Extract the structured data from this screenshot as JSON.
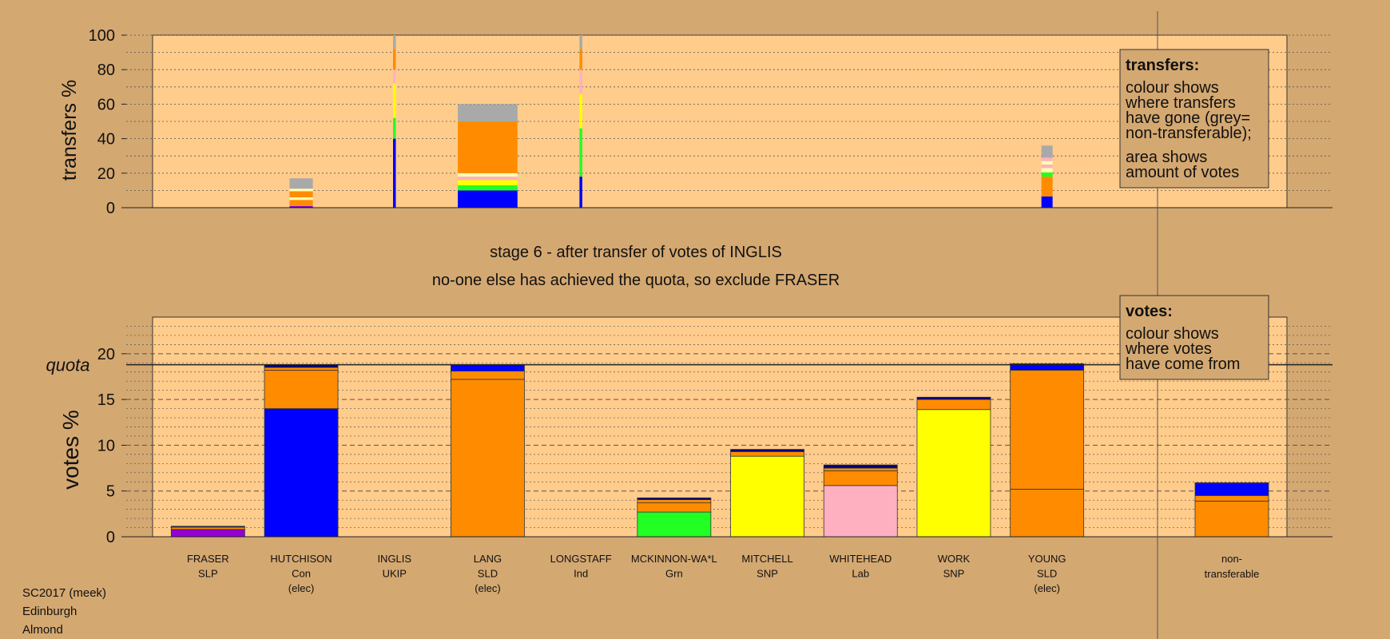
{
  "colors": {
    "background": "#d4a871",
    "plot_bg": "#ffcc8c",
    "grey": "#a9a9a9",
    "orange": "#ff8c00",
    "blue": "#0000ff",
    "yellow": "#ffff00",
    "green": "#22ff22",
    "pink": "#ffb0c0",
    "purple": "#9400d3",
    "navy": "#000080",
    "light_yellow": "#ffffb0"
  },
  "title_lines": {
    "stage": "stage 6 - after transfer of votes of INGLIS",
    "action": "no-one else has achieved the quota, so exclude FRASER"
  },
  "footer": {
    "line1": "SC2017 (meek)",
    "line2": "Edinburgh",
    "line3": "Almond"
  },
  "legend_transfers": {
    "heading": "transfers:",
    "line1": "colour shows",
    "line2": "where transfers",
    "line3": "have gone (grey=",
    "line4": "non-transferable);",
    "line5": "area shows",
    "line6": "amount of votes"
  },
  "legend_votes": {
    "heading": "votes:",
    "line1": "colour shows",
    "line2": "where votes",
    "line3": "have come from"
  },
  "chart_data": {
    "candidates": [
      {
        "name": "FRASER",
        "party": "SLP",
        "status": ""
      },
      {
        "name": "HUTCHISON",
        "party": "Con",
        "status": "(elec)"
      },
      {
        "name": "INGLIS",
        "party": "UKIP",
        "status": ""
      },
      {
        "name": "LANG",
        "party": "SLD",
        "status": "(elec)"
      },
      {
        "name": "LONGSTAFF",
        "party": "Ind",
        "status": ""
      },
      {
        "name": "MCKINNON-WA*L",
        "party": "Grn",
        "status": ""
      },
      {
        "name": "MITCHELL",
        "party": "SNP",
        "status": ""
      },
      {
        "name": "WHITEHEAD",
        "party": "Lab",
        "status": ""
      },
      {
        "name": "WORK",
        "party": "SNP",
        "status": ""
      },
      {
        "name": "YOUNG",
        "party": "SLD",
        "status": "(elec)"
      }
    ],
    "nontransferable": {
      "line1": "non-",
      "line2": "transferable"
    },
    "transfers": {
      "type": "bar",
      "ylabel": "transfers %",
      "ylim": [
        0,
        100
      ],
      "yticks": [
        "0",
        "20",
        "40",
        "60",
        "80",
        "100"
      ],
      "bars": [
        {
          "candidate": "HUTCHISON",
          "width": 0.25,
          "segments": [
            {
              "color": "blue",
              "value": 0.5
            },
            {
              "color": "purple",
              "value": 0.5
            },
            {
              "color": "orange",
              "value": 3.5
            },
            {
              "color": "light_yellow",
              "value": 1.5
            },
            {
              "color": "orange",
              "value": 3.5
            },
            {
              "color": "light_yellow",
              "value": 1.5
            },
            {
              "color": "grey",
              "value": 6
            }
          ]
        },
        {
          "candidate": "INGLIS",
          "width": 0.03,
          "segments": [
            {
              "color": "blue",
              "value": 40
            },
            {
              "color": "green",
              "value": 12
            },
            {
              "color": "yellow",
              "value": 20
            },
            {
              "color": "pink",
              "value": 8
            },
            {
              "color": "orange",
              "value": 12
            },
            {
              "color": "grey",
              "value": 8
            }
          ]
        },
        {
          "candidate": "LANG",
          "width": 0.64,
          "segments": [
            {
              "color": "blue",
              "value": 10
            },
            {
              "color": "green",
              "value": 3
            },
            {
              "color": "yellow",
              "value": 3
            },
            {
              "color": "pink",
              "value": 2
            },
            {
              "color": "light_yellow",
              "value": 2
            },
            {
              "color": "orange",
              "value": 30
            },
            {
              "color": "grey",
              "value": 10
            }
          ]
        },
        {
          "candidate": "LONGSTAFF",
          "width": 0.03,
          "segments": [
            {
              "color": "blue",
              "value": 18
            },
            {
              "color": "green",
              "value": 28
            },
            {
              "color": "yellow",
              "value": 20
            },
            {
              "color": "pink",
              "value": 14
            },
            {
              "color": "orange",
              "value": 12
            },
            {
              "color": "grey",
              "value": 8
            }
          ]
        },
        {
          "candidate": "YOUNG",
          "width": 0.12,
          "segments": [
            {
              "color": "blue",
              "value": 6.5
            },
            {
              "color": "orange",
              "value": 11.5
            },
            {
              "color": "green",
              "value": 2.5
            },
            {
              "color": "light_yellow",
              "value": 2.5
            },
            {
              "color": "pink",
              "value": 2
            },
            {
              "color": "light_yellow",
              "value": 2
            },
            {
              "color": "pink",
              "value": 2
            },
            {
              "color": "grey",
              "value": 7
            }
          ]
        }
      ]
    },
    "votes": {
      "type": "bar",
      "ylabel": "votes %",
      "ylim": [
        0,
        24
      ],
      "yticks": [
        "0",
        "5",
        "10",
        "15",
        "20"
      ],
      "quota": 18.8,
      "quota_label": "quota",
      "bars": [
        {
          "candidate": "FRASER",
          "segments": [
            {
              "color": "purple",
              "value": 0.8
            },
            {
              "color": "orange",
              "value": 0.25
            },
            {
              "color": "navy",
              "value": 0.1
            }
          ]
        },
        {
          "candidate": "HUTCHISON",
          "segments": [
            {
              "color": "blue",
              "value": 14
            },
            {
              "color": "orange",
              "value": 4.2
            },
            {
              "color": "orange",
              "value": 0.3
            },
            {
              "color": "navy",
              "value": 0.3
            }
          ]
        },
        {
          "candidate": "LANG",
          "segments": [
            {
              "color": "orange",
              "value": 17.2
            },
            {
              "color": "orange",
              "value": 0.9
            },
            {
              "color": "blue",
              "value": 0.7
            }
          ]
        },
        {
          "candidate": "MCKINNON-WA*L",
          "segments": [
            {
              "color": "green",
              "value": 2.7
            },
            {
              "color": "orange",
              "value": 1.0
            },
            {
              "color": "orange",
              "value": 0.35
            },
            {
              "color": "navy",
              "value": 0.2
            }
          ]
        },
        {
          "candidate": "MITCHELL",
          "segments": [
            {
              "color": "yellow",
              "value": 8.8
            },
            {
              "color": "orange",
              "value": 0.5
            },
            {
              "color": "navy",
              "value": 0.25
            }
          ]
        },
        {
          "candidate": "WHITEHEAD",
          "segments": [
            {
              "color": "pink",
              "value": 5.6
            },
            {
              "color": "orange",
              "value": 1.6
            },
            {
              "color": "orange",
              "value": 0.3
            },
            {
              "color": "navy",
              "value": 0.35
            }
          ]
        },
        {
          "candidate": "WORK",
          "segments": [
            {
              "color": "yellow",
              "value": 13.9
            },
            {
              "color": "orange",
              "value": 1.1
            },
            {
              "color": "navy",
              "value": 0.25
            }
          ]
        },
        {
          "candidate": "YOUNG",
          "segments": [
            {
              "color": "orange",
              "value": 5.2
            },
            {
              "color": "orange",
              "value": 13.0
            },
            {
              "color": "blue",
              "value": 0.7
            }
          ]
        },
        {
          "candidate": "non-transferable",
          "segments": [
            {
              "color": "orange",
              "value": 3.9
            },
            {
              "color": "orange",
              "value": 0.6
            },
            {
              "color": "blue",
              "value": 1.3
            },
            {
              "color": "navy",
              "value": 0.1
            }
          ]
        }
      ]
    }
  }
}
